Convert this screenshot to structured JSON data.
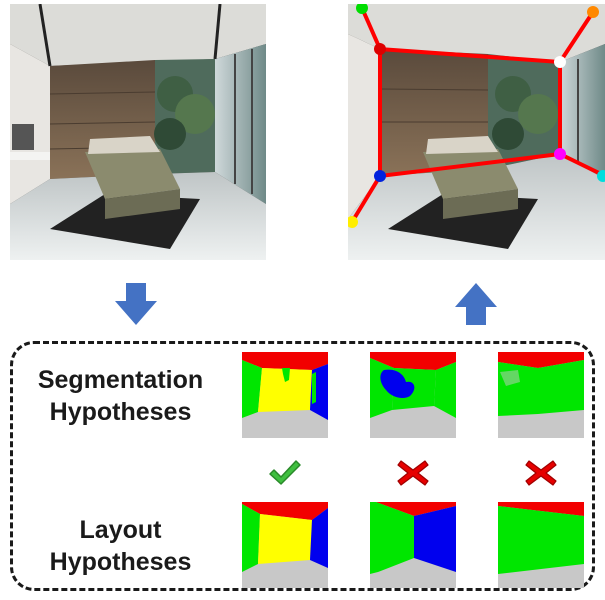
{
  "panel": {
    "segmentation_label": [
      "Segmentation",
      "Hypotheses"
    ],
    "layout_label": [
      "Layout",
      "Hypotheses"
    ]
  },
  "colors": {
    "ceiling": "#f20000",
    "floor": "#c8c8c8",
    "wall_green": "#00e600",
    "wall_yellow": "#ffff00",
    "wall_blue": "#0000ee",
    "arrow_blue": "#4472c4",
    "check_green": "#3fbf3f",
    "cross_red": "#e60000",
    "layout_line": "#ff0000"
  },
  "icons": {
    "down_arrow": "down-arrow-icon",
    "up_arrow": "up-arrow-icon",
    "check": "check-icon",
    "cross": "cross-icon"
  },
  "hypotheses": [
    {
      "verdict": "accepted"
    },
    {
      "verdict": "rejected"
    },
    {
      "verdict": "rejected"
    }
  ]
}
